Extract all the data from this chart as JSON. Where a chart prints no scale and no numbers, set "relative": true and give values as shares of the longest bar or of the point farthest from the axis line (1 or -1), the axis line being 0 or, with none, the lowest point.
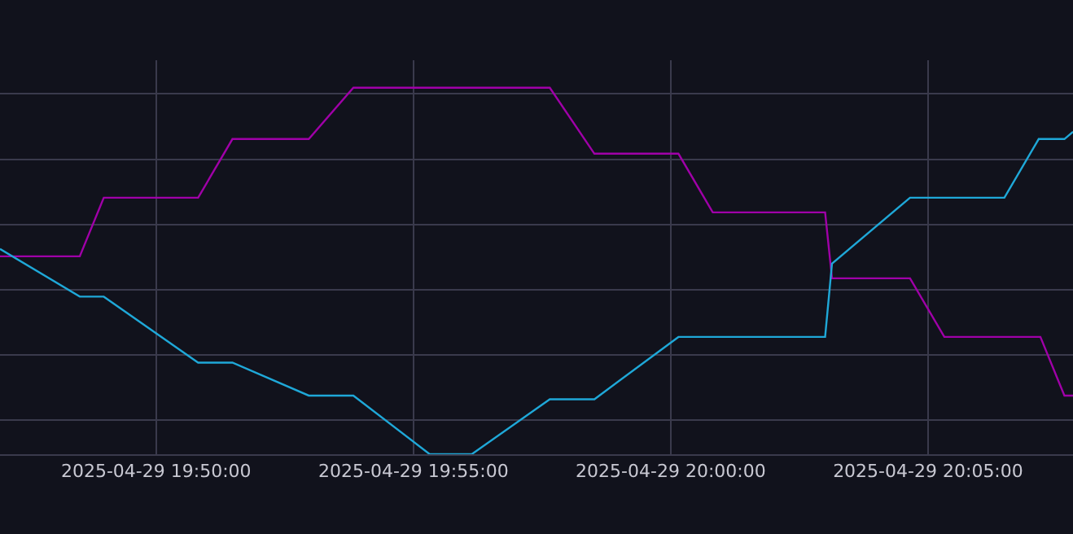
{
  "chart_data": {
    "type": "line",
    "relative": true,
    "grid": true,
    "marker": "none",
    "line_style": "solid",
    "xlim": [
      "2025-04-29T19:46:58",
      "2025-04-29T20:07:49"
    ],
    "xticks": [
      {
        "value": "2025-04-29T19:50:00",
        "label": "2025-04-29 19:50:00"
      },
      {
        "value": "2025-04-29T19:55:00",
        "label": "2025-04-29 19:55:00"
      },
      {
        "value": "2025-04-29T20:00:00",
        "label": "2025-04-29 20:00:00"
      },
      {
        "value": "2025-04-29T20:05:00",
        "label": "2025-04-29 20:05:00"
      }
    ],
    "series": [
      {
        "color": "#a000a8",
        "x": [
          "2025-04-29T19:46:58",
          "2025-04-29T19:48:31",
          "2025-04-29T19:48:59",
          "2025-04-29T19:50:49",
          "2025-04-29T19:51:29",
          "2025-04-29T19:52:58",
          "2025-04-29T19:53:50",
          "2025-04-29T19:57:39",
          "2025-04-29T19:58:31",
          "2025-04-29T20:00:09",
          "2025-04-29T20:00:49",
          "2025-04-29T20:03:00",
          "2025-04-29T20:03:08",
          "2025-04-29T20:04:39",
          "2025-04-29T20:05:19",
          "2025-04-29T20:07:11",
          "2025-04-29T20:07:39",
          "2025-04-29T20:07:49"
        ],
        "values": [
          0.54,
          0.54,
          0.7,
          0.7,
          0.86,
          0.86,
          1.0,
          1.0,
          0.82,
          0.82,
          0.66,
          0.66,
          0.48,
          0.48,
          0.32,
          0.32,
          0.16,
          0.16
        ]
      },
      {
        "color": "#1fa8d8",
        "x": [
          "2025-04-29T19:46:58",
          "2025-04-29T19:48:31",
          "2025-04-29T19:48:59",
          "2025-04-29T19:50:49",
          "2025-04-29T19:51:29",
          "2025-04-29T19:52:58",
          "2025-04-29T19:53:50",
          "2025-04-29T19:55:19",
          "2025-04-29T19:56:08",
          "2025-04-29T19:57:39",
          "2025-04-29T19:58:31",
          "2025-04-29T20:00:09",
          "2025-04-29T20:03:00",
          "2025-04-29T20:03:08",
          "2025-04-29T20:04:39",
          "2025-04-29T20:06:29",
          "2025-04-29T20:07:09",
          "2025-04-29T20:07:39",
          "2025-04-29T20:07:49"
        ],
        "values": [
          0.56,
          0.43,
          0.43,
          0.25,
          0.25,
          0.16,
          0.16,
          0.0,
          0.0,
          0.15,
          0.15,
          0.32,
          0.32,
          0.52,
          0.7,
          0.7,
          0.86,
          0.86,
          0.88
        ]
      }
    ]
  }
}
